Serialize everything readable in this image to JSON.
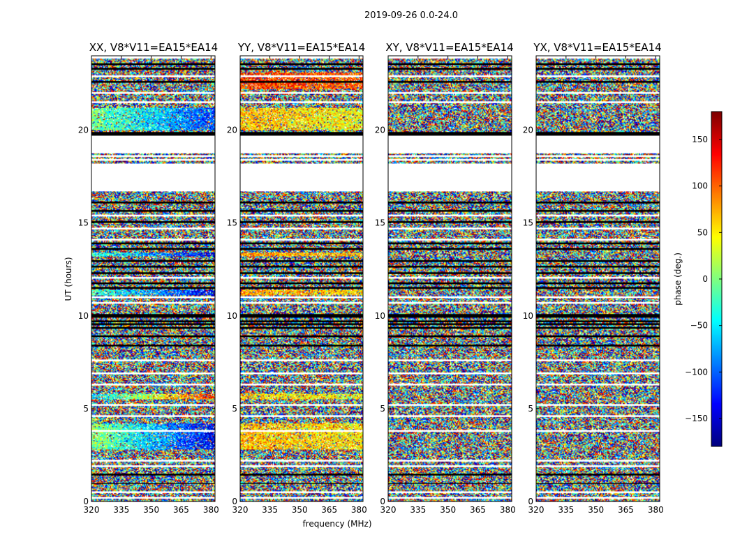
{
  "chart_data": {
    "type": "heatmap",
    "title": "2019-09-26 0.0-24.0",
    "xlabel": "frequency (MHz)",
    "ylabel": "UT (hours)",
    "colorbar_label": "phase (deg.)",
    "colormap": "jet",
    "xlim": [
      320,
      382
    ],
    "ylim": [
      0,
      24
    ],
    "clim": [
      -180,
      180
    ],
    "x_ticks": [
      320,
      335,
      350,
      365,
      380
    ],
    "y_ticks": [
      0,
      5,
      10,
      15,
      20
    ],
    "colorbar_ticks": [
      -150,
      -100,
      -50,
      0,
      50,
      100,
      150
    ],
    "colorbar_tick_labels": [
      "−150",
      "−100",
      "−50",
      "0",
      "50",
      "100",
      "150"
    ],
    "panels": [
      {
        "title": "XX, V8*V11=EA15*EA14",
        "bands": [
          {
            "y0": 20.0,
            "y1": 21.2,
            "phase_start": 0,
            "phase_end": -110
          },
          {
            "y0": 13.2,
            "y1": 13.4,
            "phase_start": -20,
            "phase_end": -140
          },
          {
            "y0": 11.1,
            "y1": 11.4,
            "phase_start": -20,
            "phase_end": -140
          },
          {
            "y0": 5.5,
            "y1": 5.8,
            "phase_start": -60,
            "phase_end": 120
          },
          {
            "y0": 2.8,
            "y1": 4.2,
            "phase_start": 10,
            "phase_end": -140
          }
        ]
      },
      {
        "title": "YY, V8*V11=EA15*EA14",
        "bands": [
          {
            "y0": 20.0,
            "y1": 21.2,
            "phase_start": 70,
            "phase_end": 40
          },
          {
            "y0": 22.2,
            "y1": 23.1,
            "phase_start": 120,
            "phase_end": 100
          },
          {
            "y0": 13.2,
            "y1": 13.4,
            "phase_start": 80,
            "phase_end": 60
          },
          {
            "y0": 11.1,
            "y1": 11.4,
            "phase_start": 80,
            "phase_end": 60
          },
          {
            "y0": 5.5,
            "y1": 5.8,
            "phase_start": 60,
            "phase_end": 40
          },
          {
            "y0": 2.8,
            "y1": 4.2,
            "phase_start": 70,
            "phase_end": 50
          }
        ]
      },
      {
        "title": "XY, V8*V11=EA15*EA14",
        "bands": []
      },
      {
        "title": "YX, V8*V11=EA15*EA14",
        "bands": []
      }
    ],
    "flagged_ranges": [
      [
        16.7,
        18.2
      ],
      [
        18.75,
        19.7
      ],
      [
        23.85,
        24.0
      ]
    ],
    "black_rows": [
      0.97,
      1.45,
      8.4,
      8.9,
      9.35,
      9.55,
      9.7,
      9.95,
      10.05,
      11.5,
      11.75,
      12.3,
      12.65,
      12.95,
      13.6,
      13.9,
      15.05,
      15.65,
      16.1,
      19.75,
      19.85,
      22.6,
      23.3,
      23.55
    ],
    "white_rows": [
      0.2,
      0.5,
      1.9,
      2.2,
      3.8,
      4.6,
      5.2,
      6.3,
      6.9,
      7.6,
      10.7,
      11.0,
      12.05,
      14.1,
      14.7,
      15.4,
      18.4,
      18.6,
      21.5,
      22.0,
      22.9
    ]
  }
}
